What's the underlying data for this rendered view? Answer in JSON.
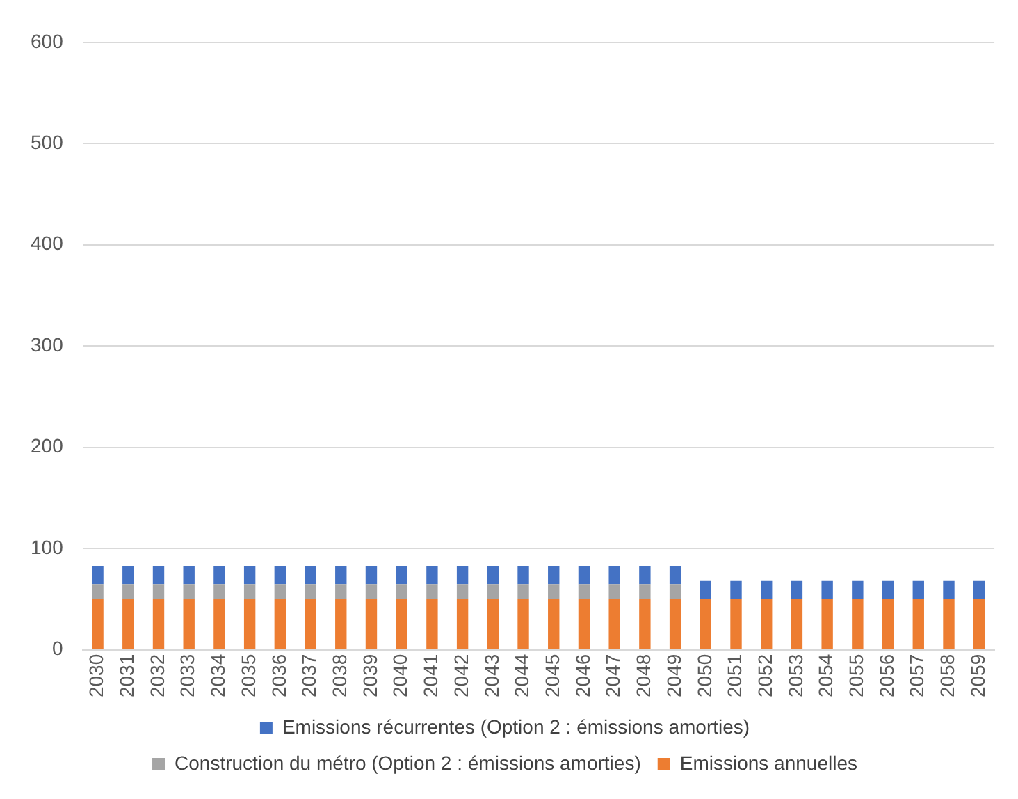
{
  "chart_data": {
    "type": "bar",
    "stacked": true,
    "categories": [
      "2030",
      "2031",
      "2032",
      "2033",
      "2034",
      "2035",
      "2036",
      "2037",
      "2038",
      "2039",
      "2040",
      "2041",
      "2042",
      "2043",
      "2044",
      "2045",
      "2046",
      "2047",
      "2048",
      "2049",
      "2050",
      "2051",
      "2052",
      "2053",
      "2054",
      "2055",
      "2056",
      "2057",
      "2058",
      "2059"
    ],
    "series": [
      {
        "name": "Emissions annuelles",
        "color": "#ed7d31",
        "values": [
          50,
          50,
          50,
          50,
          50,
          50,
          50,
          50,
          50,
          50,
          50,
          50,
          50,
          50,
          50,
          50,
          50,
          50,
          50,
          50,
          50,
          50,
          50,
          50,
          50,
          50,
          50,
          50,
          50,
          50
        ]
      },
      {
        "name": "Construction du métro (Option 2 : émissions amorties)",
        "color": "#a5a5a5",
        "values": [
          15,
          15,
          15,
          15,
          15,
          15,
          15,
          15,
          15,
          15,
          15,
          15,
          15,
          15,
          15,
          15,
          15,
          15,
          15,
          15,
          0,
          0,
          0,
          0,
          0,
          0,
          0,
          0,
          0,
          0
        ]
      },
      {
        "name": "Emissions récurrentes (Option 2 : émissions amorties)",
        "color": "#4472c4",
        "values": [
          18,
          18,
          18,
          18,
          18,
          18,
          18,
          18,
          18,
          18,
          18,
          18,
          18,
          18,
          18,
          18,
          18,
          18,
          18,
          18,
          18,
          18,
          18,
          18,
          18,
          18,
          18,
          18,
          18,
          18
        ]
      }
    ],
    "ylim": [
      0,
      600
    ],
    "yticks": [
      0,
      100,
      200,
      300,
      400,
      500,
      600
    ],
    "grid": "y",
    "legend": "bottom"
  }
}
